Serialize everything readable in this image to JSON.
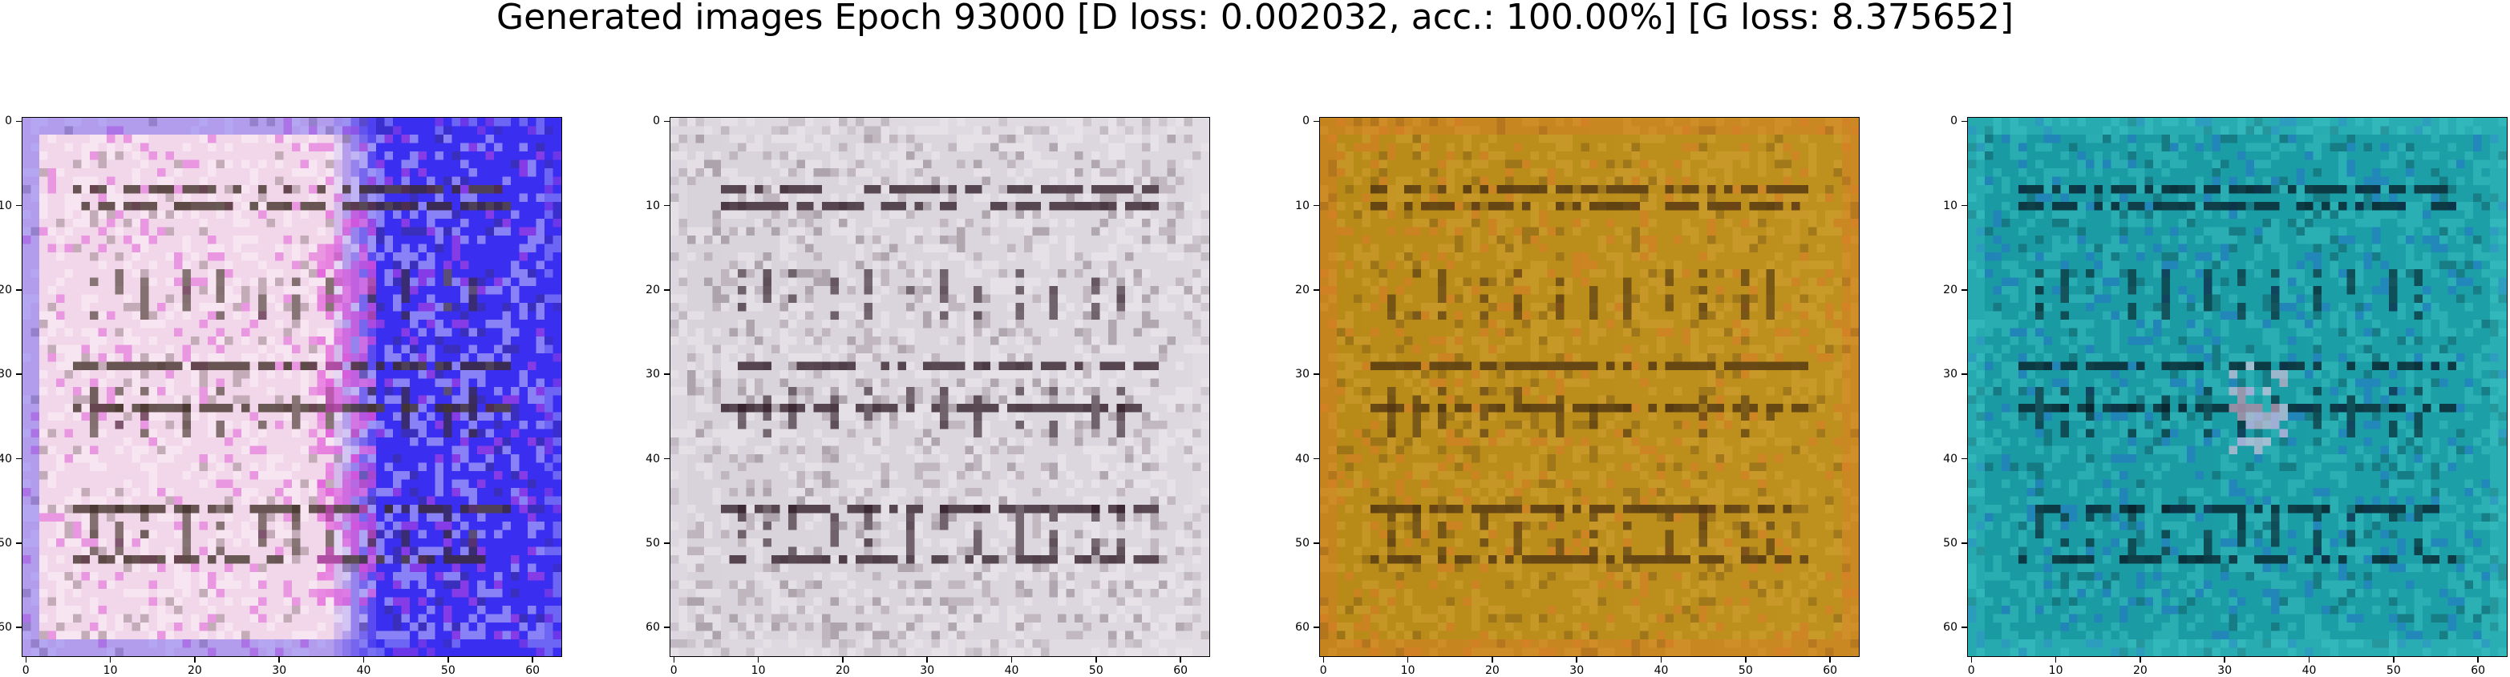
{
  "figure": {
    "title": "Generated images Epoch 93000 [D loss: 0.002032, acc.: 100.00%] [G loss: 8.375652]"
  },
  "axes": {
    "y_ticks": [
      "0",
      "10",
      "20",
      "30",
      "40",
      "50",
      "60"
    ],
    "x_ticks": [
      "0",
      "10",
      "20",
      "30",
      "40",
      "50",
      "60"
    ]
  },
  "images": [
    {
      "name": "sample-1",
      "description_colors": {
        "left": "#f2d6ea",
        "right": "#3a2ff0",
        "accent": "#e04ad8",
        "stripe": "#3a2a20",
        "grid": "#ffffff"
      }
    },
    {
      "name": "sample-2",
      "description_colors": {
        "left": "#d8d2da",
        "right": "#e6e2e8",
        "accent": "#a0929c",
        "stripe": "#2a1620",
        "grid": "#f4f2f4"
      }
    },
    {
      "name": "sample-3",
      "description_colors": {
        "left": "#b88a18",
        "right": "#c89a28",
        "accent": "#e07a2a",
        "stripe": "#4a3010",
        "grid": "#d8a838"
      }
    },
    {
      "name": "sample-4",
      "description_colors": {
        "left": "#1a9aa2",
        "right": "#20a8b0",
        "accent": "#2a6ad0",
        "stripe": "#061a24",
        "grid": "#40c8c8"
      }
    }
  ]
}
